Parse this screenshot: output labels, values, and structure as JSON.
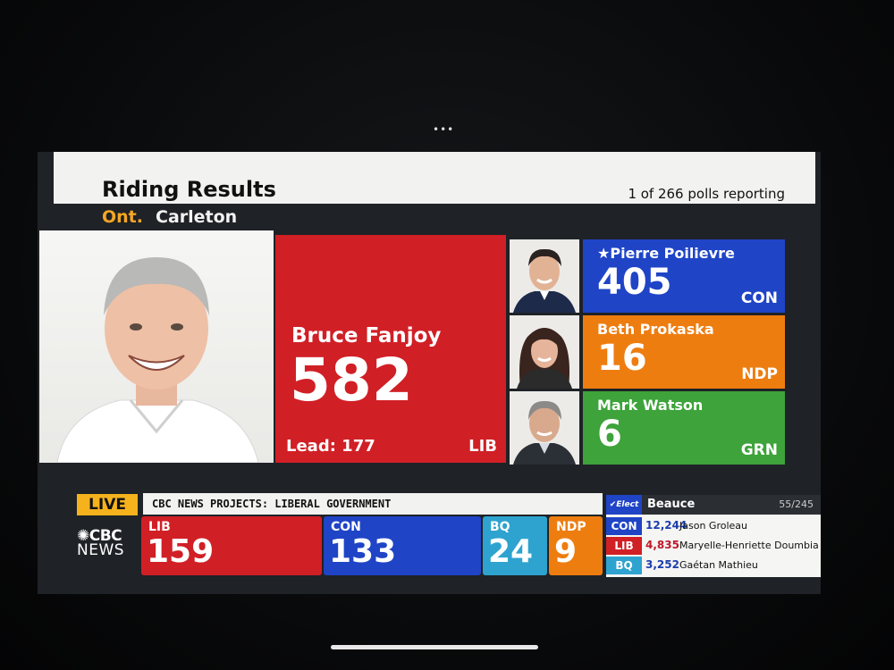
{
  "header": {
    "title": "Riding Results",
    "polls": "1 of 266 polls reporting"
  },
  "riding": {
    "province": "Ont.",
    "name": "Carleton"
  },
  "winner": {
    "name": "Bruce Fanjoy",
    "votes": "582",
    "lead": "Lead: 177",
    "party": "LIB"
  },
  "candidates": [
    {
      "name": "★Pierre Poilievre",
      "votes": "405",
      "party": "CON"
    },
    {
      "name": "Beth Prokaska",
      "votes": "16",
      "party": "NDP"
    },
    {
      "name": "Mark Watson",
      "votes": "6",
      "party": "GRN"
    }
  ],
  "live": {
    "label": "LIVE",
    "ticker": "CBC NEWS PROJECTS: LIBERAL GOVERNMENT"
  },
  "logo": {
    "line1": "CBC",
    "line2": "NEWS"
  },
  "seats": [
    {
      "party": "LIB",
      "count": "159"
    },
    {
      "party": "CON",
      "count": "133"
    },
    {
      "party": "BQ",
      "count": "24"
    },
    {
      "party": "NDP",
      "count": "9"
    }
  ],
  "other_riding": {
    "elect_label": "Elect",
    "name": "Beauce",
    "count": "55/245",
    "rows": [
      {
        "party": "CON",
        "votes": "12,244",
        "name": "Jason Groleau"
      },
      {
        "party": "LIB",
        "votes": "4,835",
        "name": "Maryelle-Henriette Doumbia"
      },
      {
        "party": "BQ",
        "votes": "3,252",
        "name": "Gaétan Mathieu"
      }
    ]
  },
  "colors": {
    "lib": "#d11f26",
    "con": "#1f44c6",
    "ndp": "#ee7d10",
    "grn": "#3da33a",
    "bq": "#2ea3cf",
    "live": "#f5b21d"
  }
}
